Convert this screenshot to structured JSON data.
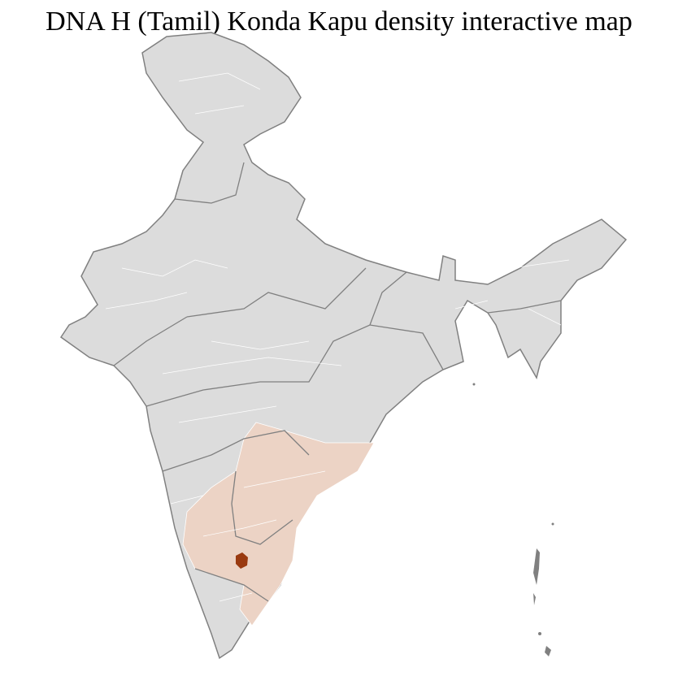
{
  "title": "DNA H (Tamil) Konda Kapu density interactive map",
  "colors": {
    "land": "#dcdcdc",
    "district_border": "#ffffff",
    "state_border": "#808080",
    "low_density": "#ecd3c5",
    "high_density": "#9a3a10"
  }
}
